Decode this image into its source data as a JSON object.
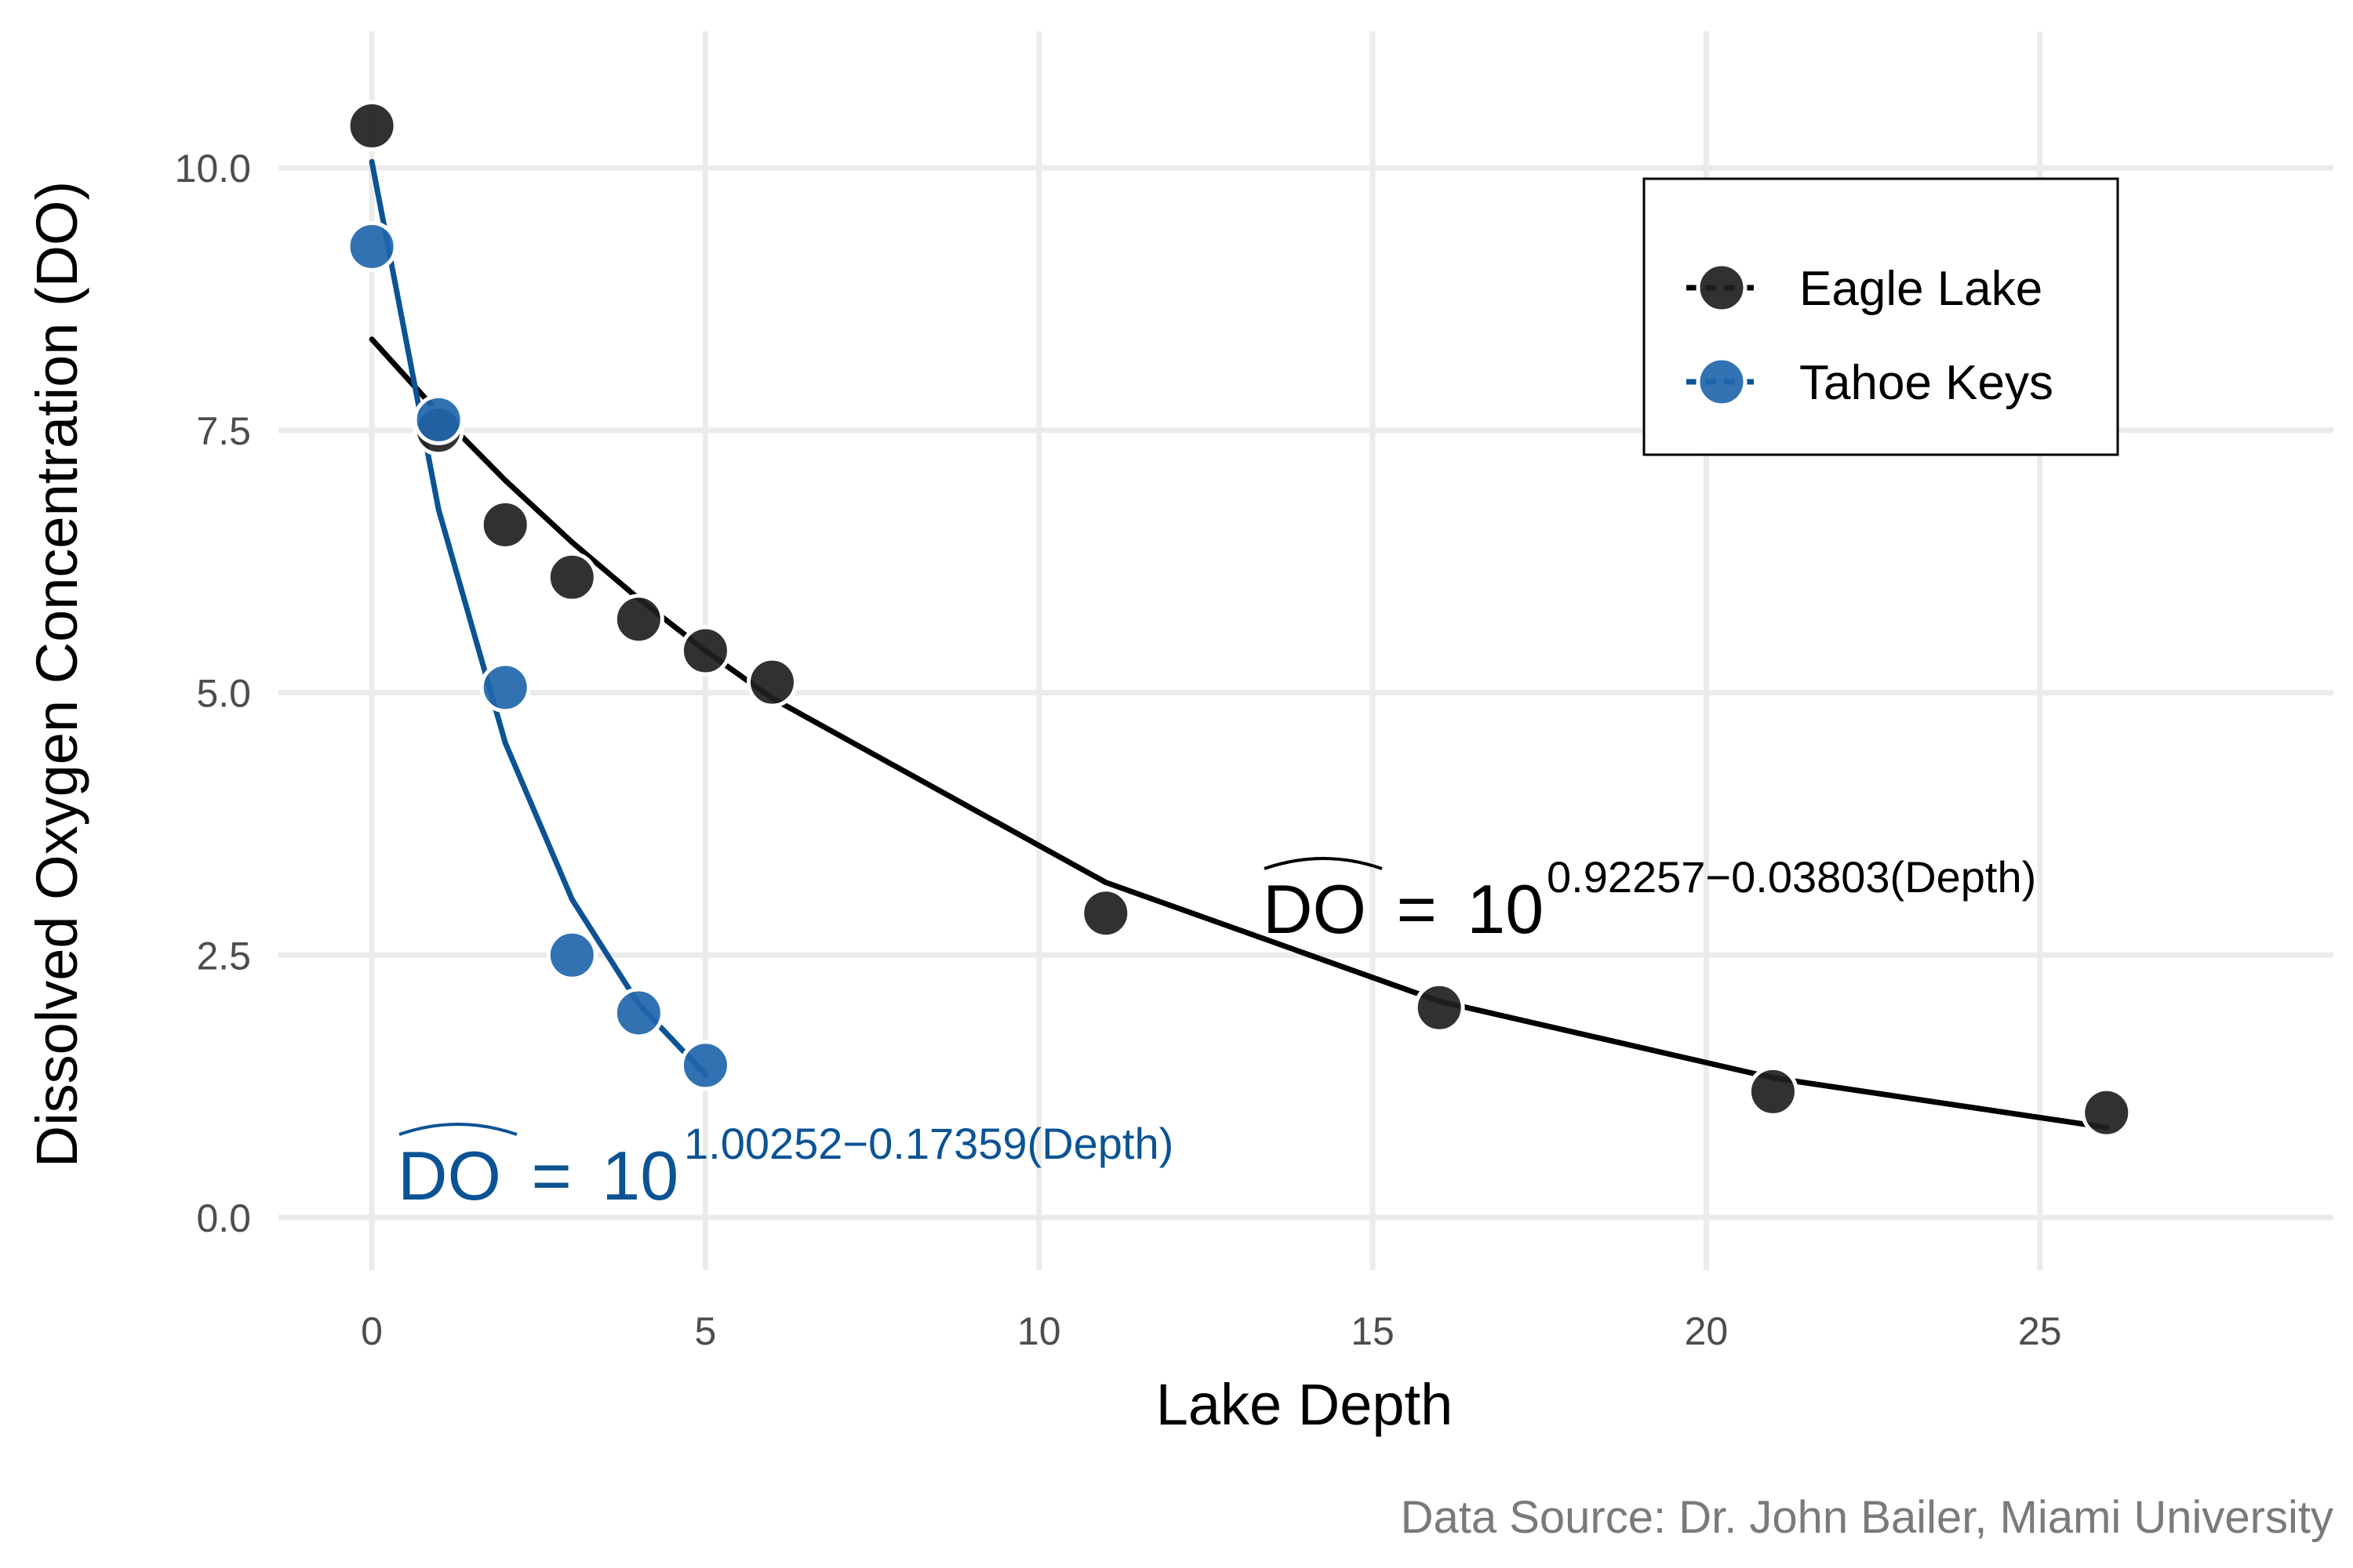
{
  "chart_data": {
    "type": "scatter",
    "title": "",
    "xlabel": "Lake Depth",
    "ylabel": "Dissolved Oxygen Concentration (DO)",
    "xlim": [
      -1.4,
      29.4
    ],
    "ylim": [
      -0.5,
      11.3
    ],
    "x_ticks": [
      0,
      5,
      10,
      15,
      20,
      25
    ],
    "y_ticks": [
      0.0,
      2.5,
      5.0,
      7.5,
      10.0
    ],
    "x_tick_labels": [
      "0",
      "5",
      "10",
      "15",
      "20",
      "25"
    ],
    "y_tick_labels": [
      "0.0",
      "2.5",
      "5.0",
      "7.5",
      "10.0"
    ],
    "grid": true,
    "legend_position": "top-right",
    "caption": "Data Source: Dr. John Bailer, Miami University",
    "series": [
      {
        "name": "Eagle Lake",
        "color": "#1f1f1f",
        "line_color": "#000000",
        "x": [
          0,
          1,
          2,
          3,
          4,
          5,
          6,
          11,
          16,
          21,
          26
        ],
        "y": [
          10.4,
          7.5,
          6.6,
          6.1,
          5.7,
          5.4,
          5.1,
          2.9,
          2.0,
          1.2,
          1.0
        ],
        "fit": {
          "intercept": 0.92257,
          "slope": -0.03803
        },
        "annotation": {
          "lhs": "DO",
          "equals": "=",
          "base": "10",
          "exponent": "0.92257−0.03803(Depth)"
        }
      },
      {
        "name": "Tahoe Keys",
        "color": "#2166ac",
        "line_color": "#0b5394",
        "x": [
          0,
          1,
          2,
          3,
          4,
          5
        ],
        "y": [
          9.25,
          7.6,
          5.05,
          2.5,
          1.95,
          1.45
        ],
        "fit": {
          "intercept": 1.00252,
          "slope": -0.17359
        },
        "annotation": {
          "lhs": "DO",
          "equals": "=",
          "base": "10",
          "exponent": "1.00252−0.17359(Depth)"
        }
      }
    ]
  }
}
